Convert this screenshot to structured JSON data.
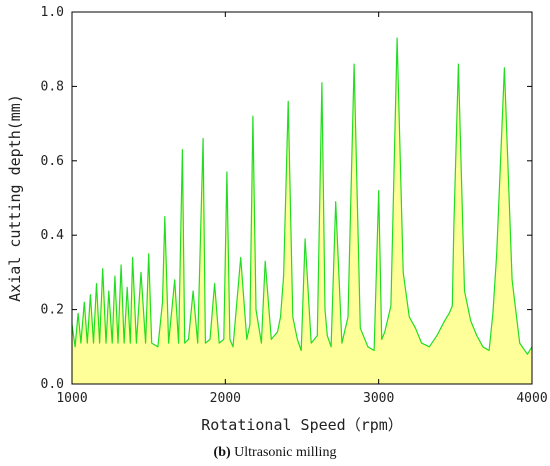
{
  "chart_data": {
    "type": "area",
    "xlabel": "Rotational Speed（rpm）",
    "ylabel": "Axial cutting depth(mm)",
    "xlim": [
      1000,
      4000
    ],
    "ylim": [
      0,
      1.0
    ],
    "xticks": [
      "1000",
      "2000",
      "3000",
      "4000"
    ],
    "yticks": [
      "0.0",
      "0.2",
      "0.4",
      "0.6",
      "0.8",
      "1.0"
    ],
    "grid": false,
    "fill_color": "#ffff99",
    "line_color": "#22dd22",
    "x": [
      1000,
      1020,
      1040,
      1058,
      1080,
      1100,
      1120,
      1140,
      1160,
      1180,
      1200,
      1222,
      1240,
      1262,
      1280,
      1300,
      1320,
      1340,
      1360,
      1380,
      1395,
      1420,
      1450,
      1480,
      1500,
      1520,
      1560,
      1590,
      1605,
      1630,
      1670,
      1695,
      1720,
      1735,
      1760,
      1790,
      1820,
      1855,
      1870,
      1900,
      1930,
      1960,
      1990,
      2010,
      2030,
      2050,
      2100,
      2140,
      2160,
      2180,
      2200,
      2235,
      2260,
      2300,
      2340,
      2360,
      2380,
      2410,
      2440,
      2470,
      2495,
      2520,
      2560,
      2600,
      2630,
      2650,
      2665,
      2690,
      2720,
      2760,
      2800,
      2840,
      2880,
      2930,
      2970,
      3000,
      3020,
      3040,
      3080,
      3120,
      3160,
      3200,
      3240,
      3280,
      3330,
      3380,
      3430,
      3460,
      3480,
      3490,
      3520,
      3560,
      3600,
      3640,
      3680,
      3720,
      3745,
      3770,
      3820,
      3870,
      3920,
      3970,
      4000
    ],
    "y": [
      0.16,
      0.1,
      0.19,
      0.11,
      0.22,
      0.11,
      0.24,
      0.11,
      0.27,
      0.11,
      0.31,
      0.11,
      0.25,
      0.11,
      0.29,
      0.11,
      0.32,
      0.11,
      0.26,
      0.11,
      0.34,
      0.11,
      0.3,
      0.11,
      0.35,
      0.11,
      0.1,
      0.22,
      0.45,
      0.11,
      0.28,
      0.11,
      0.63,
      0.11,
      0.12,
      0.25,
      0.11,
      0.66,
      0.11,
      0.12,
      0.27,
      0.11,
      0.12,
      0.57,
      0.12,
      0.1,
      0.34,
      0.12,
      0.16,
      0.72,
      0.2,
      0.11,
      0.33,
      0.12,
      0.14,
      0.18,
      0.29,
      0.76,
      0.18,
      0.12,
      0.09,
      0.39,
      0.11,
      0.13,
      0.81,
      0.2,
      0.13,
      0.1,
      0.49,
      0.11,
      0.18,
      0.86,
      0.15,
      0.1,
      0.09,
      0.52,
      0.12,
      0.14,
      0.21,
      0.93,
      0.3,
      0.18,
      0.15,
      0.11,
      0.1,
      0.13,
      0.17,
      0.19,
      0.21,
      0.42,
      0.86,
      0.25,
      0.17,
      0.13,
      0.1,
      0.09,
      0.19,
      0.35,
      0.85,
      0.28,
      0.11,
      0.08,
      0.1
    ]
  },
  "caption": {
    "label": "(b)",
    "text": " Ultrasonic milling"
  }
}
